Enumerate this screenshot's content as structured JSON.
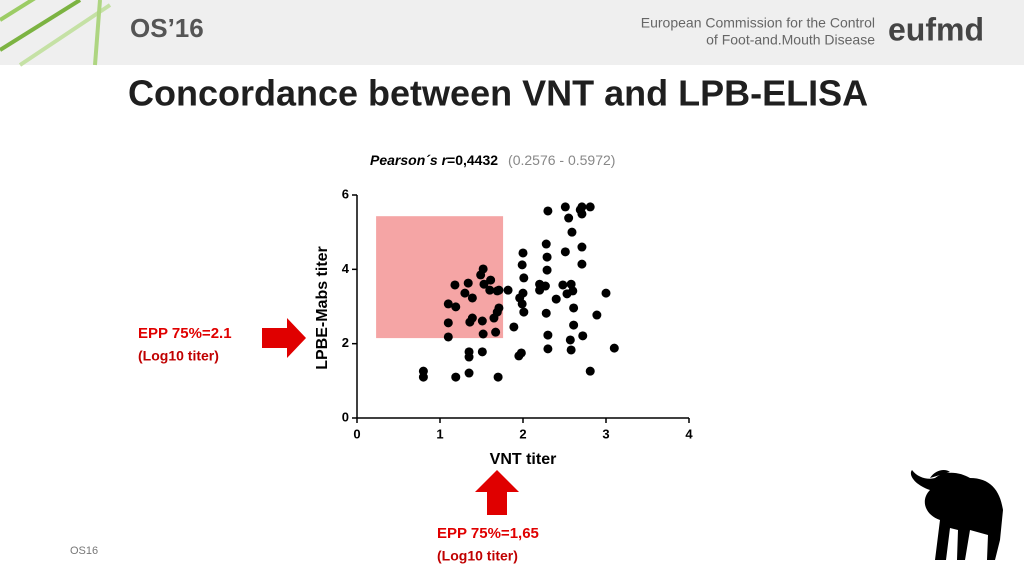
{
  "header": {
    "logo": "OS’16",
    "org_line1": "European Commission for the Control",
    "org_line2": "of Foot-and.Mouth Disease",
    "brand": "eufmd"
  },
  "title": "Concordance between VNT and LPB-ELISA",
  "footer": "OS16",
  "chart_data": {
    "type": "scatter",
    "stat_label": "Pearson´s  r",
    "stat_value": "=0,4432",
    "stat_interval": "(0.2576 - 0.5972)",
    "x_label": "VNT titer",
    "y_label": "LPBE-Mabs titer",
    "xlim": [
      0,
      4
    ],
    "ylim": [
      0,
      6
    ],
    "xticks": [
      0,
      1,
      2,
      3,
      4
    ],
    "yticks": [
      0,
      2,
      4,
      6
    ],
    "color": "#000000",
    "region": {
      "xlim": [
        0.23,
        1.76
      ],
      "ylim": [
        2.15,
        5.43
      ],
      "color": "#f4a0a0"
    },
    "annotations": [
      "EPP 75%=2.1",
      "(Log10 titer)",
      "EPP 75%=1,65",
      "(Log10 titer)"
    ],
    "x": [
      0.8,
      0.8,
      1.19,
      1.35,
      1.35,
      1.35,
      1.51,
      1.7,
      1.1,
      1.1,
      1.1,
      1.18,
      1.19,
      1.3,
      1.39,
      1.36,
      1.34,
      1.39,
      1.49,
      1.53,
      1.52,
      1.52,
      1.51,
      1.6,
      1.61,
      1.65,
      1.69,
      1.67,
      1.69,
      1.71,
      1.71,
      1.82,
      1.89,
      1.95,
      1.98,
      1.96,
      1.99,
      2.0,
      1.99,
      2.0,
      2.01,
      2.01,
      2.2,
      2.2,
      2.27,
      2.28,
      2.29,
      2.29,
      2.3,
      2.3,
      2.3,
      2.28,
      2.4,
      2.48,
      2.51,
      2.51,
      2.53,
      2.55,
      2.57,
      2.58,
      2.58,
      2.59,
      2.6,
      2.61,
      2.61,
      2.69,
      2.71,
      2.71,
      2.71,
      2.71,
      2.72,
      2.81,
      2.81,
      2.89,
      3.0,
      3.1
    ],
    "y": [
      1.26,
      1.1,
      1.1,
      1.21,
      1.64,
      1.78,
      1.78,
      1.1,
      2.18,
      2.56,
      3.07,
      3.58,
      2.99,
      3.36,
      3.23,
      2.58,
      3.63,
      2.69,
      3.85,
      3.6,
      4.01,
      2.26,
      2.61,
      3.44,
      3.71,
      2.69,
      3.42,
      2.31,
      2.85,
      2.96,
      3.44,
      3.44,
      2.45,
      1.67,
      1.75,
      3.23,
      4.12,
      4.44,
      3.07,
      3.36,
      2.85,
      3.77,
      3.44,
      3.6,
      3.55,
      4.68,
      4.33,
      3.98,
      5.57,
      2.23,
      1.86,
      2.82,
      3.2,
      3.58,
      5.68,
      4.47,
      3.34,
      5.38,
      2.1,
      1.83,
      3.6,
      5.0,
      3.42,
      2.5,
      2.96,
      5.6,
      5.68,
      5.49,
      4.14,
      4.6,
      2.21,
      5.68,
      1.26,
      2.77,
      3.36,
      1.88
    ]
  }
}
